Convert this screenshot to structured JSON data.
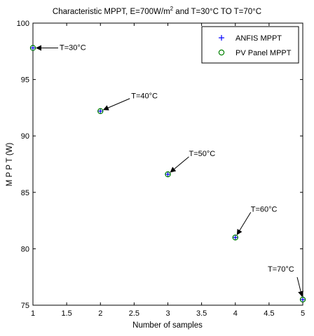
{
  "chart_data": {
    "type": "scatter",
    "title": "Characteristic MPPT, E=700W/m² and  T=30°C TO T=70°C",
    "title_parts": {
      "before_sup": "Characteristic MPPT, E=700W/m",
      "sup": "2",
      "after_sup": " and  T=30°C TO T=70°C"
    },
    "xlabel": "Number of samples",
    "ylabel": "M P P T  (W)",
    "xlim": [
      1,
      5
    ],
    "ylim": [
      75,
      100
    ],
    "xticks": [
      "1",
      "1.5",
      "2",
      "2.5",
      "3",
      "3.5",
      "4",
      "4.5",
      "5"
    ],
    "yticks": [
      "75",
      "80",
      "85",
      "90",
      "95",
      "100"
    ],
    "grid": false,
    "legend_position": "top-right",
    "series": [
      {
        "name": "ANFIS MPPT",
        "marker": "plus",
        "color": "#0000ff",
        "x": [
          1,
          2,
          3,
          4,
          5
        ],
        "y": [
          97.8,
          92.2,
          86.6,
          81.0,
          75.5
        ]
      },
      {
        "name": "PV Panel MPPT",
        "marker": "circle",
        "color": "#008000",
        "x": [
          1,
          2,
          3,
          4,
          5
        ],
        "y": [
          97.8,
          92.2,
          86.6,
          81.0,
          75.5
        ]
      }
    ],
    "annotations": [
      {
        "text": "T=30°C",
        "x": 1,
        "y": 97.8
      },
      {
        "text": "T=40°C",
        "x": 2,
        "y": 92.2
      },
      {
        "text": "T=50°C",
        "x": 3,
        "y": 86.6
      },
      {
        "text": "T=60°C",
        "x": 4,
        "y": 81.0
      },
      {
        "text": "T=70°C",
        "x": 5,
        "y": 75.5
      }
    ]
  }
}
